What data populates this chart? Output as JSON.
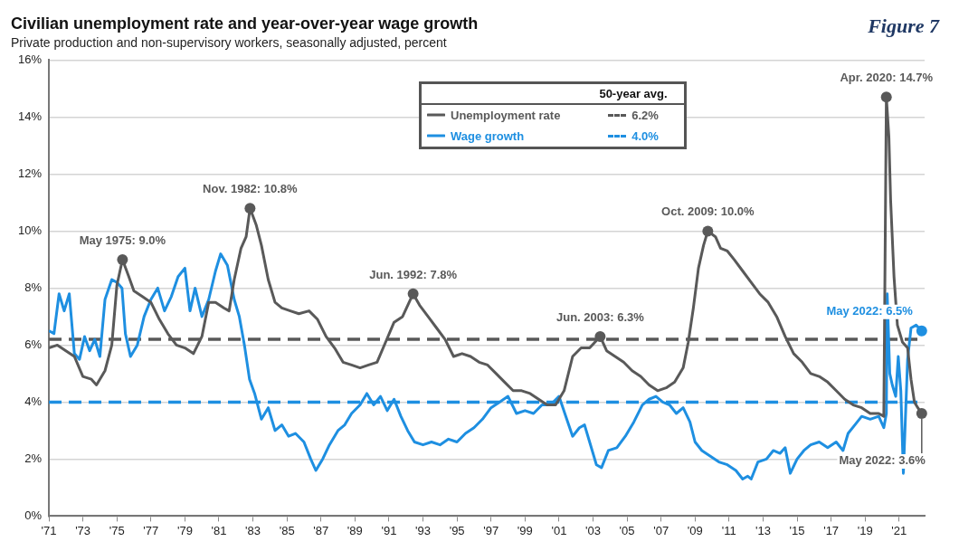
{
  "chart_data": {
    "type": "line",
    "title": "Civilian unemployment rate and year-over-year wage growth",
    "subtitle": "Private production and non-supervisory workers, seasonally adjusted, percent",
    "legend_title": "50-year avg.",
    "legend": "top",
    "grid": "y",
    "marker": "none",
    "line_style": "solid",
    "xlim": [
      1971,
      2022.5
    ],
    "xticks": [
      {
        "value": 1971,
        "label": "'71"
      },
      {
        "value": 1973,
        "label": "'73"
      },
      {
        "value": 1975,
        "label": "'75"
      },
      {
        "value": 1977,
        "label": "'77"
      },
      {
        "value": 1979,
        "label": "'79"
      },
      {
        "value": 1981,
        "label": "'81"
      },
      {
        "value": 1983,
        "label": "'83"
      },
      {
        "value": 1985,
        "label": "'85"
      },
      {
        "value": 1987,
        "label": "'87"
      },
      {
        "value": 1989,
        "label": "'89"
      },
      {
        "value": 1991,
        "label": "'91"
      },
      {
        "value": 1993,
        "label": "'93"
      },
      {
        "value": 1995,
        "label": "'95"
      },
      {
        "value": 1997,
        "label": "'97"
      },
      {
        "value": 1999,
        "label": "'99"
      },
      {
        "value": 2001,
        "label": "'01"
      },
      {
        "value": 2003,
        "label": "'03"
      },
      {
        "value": 2005,
        "label": "'05"
      },
      {
        "value": 2007,
        "label": "'07"
      },
      {
        "value": 2009,
        "label": "'09"
      },
      {
        "value": 2011,
        "label": "'11"
      },
      {
        "value": 2013,
        "label": "'13"
      },
      {
        "value": 2015,
        "label": "'15"
      },
      {
        "value": 2017,
        "label": "'17"
      },
      {
        "value": 2019,
        "label": "'19"
      },
      {
        "value": 2021,
        "label": "'21"
      }
    ],
    "ylim": [
      0,
      16
    ],
    "yticks": [
      {
        "value": 0,
        "label": "0%"
      },
      {
        "value": 2,
        "label": "2%"
      },
      {
        "value": 4,
        "label": "4%"
      },
      {
        "value": 6,
        "label": "6%"
      },
      {
        "value": 8,
        "label": "8%"
      },
      {
        "value": 10,
        "label": "10%"
      },
      {
        "value": 12,
        "label": "12%"
      },
      {
        "value": 14,
        "label": "14%"
      },
      {
        "value": 16,
        "label": "16%"
      }
    ],
    "series": [
      {
        "name": "Unemployment rate",
        "color": "#595959",
        "x": [
          1971.0,
          1971.5,
          1972.0,
          1972.5,
          1973.0,
          1973.5,
          1973.8,
          1974.3,
          1974.7,
          1975.0,
          1975.33,
          1975.7,
          1976.0,
          1976.5,
          1977.0,
          1977.5,
          1978.0,
          1978.5,
          1979.0,
          1979.5,
          1980.0,
          1980.4,
          1980.8,
          1981.3,
          1981.6,
          1981.9,
          1982.3,
          1982.6,
          1982.83,
          1983.2,
          1983.5,
          1983.9,
          1984.3,
          1984.7,
          1985.2,
          1985.7,
          1986.3,
          1986.8,
          1987.3,
          1987.8,
          1988.3,
          1988.8,
          1989.3,
          1989.8,
          1990.3,
          1990.8,
          1991.3,
          1991.8,
          1992.42,
          1992.8,
          1993.3,
          1993.8,
          1994.3,
          1994.8,
          1995.3,
          1995.8,
          1996.3,
          1996.8,
          1997.3,
          1997.8,
          1998.3,
          1998.8,
          1999.3,
          1999.8,
          2000.3,
          2000.8,
          2001.3,
          2001.8,
          2002.3,
          2002.8,
          2003.42,
          2003.8,
          2004.3,
          2004.8,
          2005.3,
          2005.8,
          2006.3,
          2006.8,
          2007.3,
          2007.8,
          2008.3,
          2008.6,
          2008.9,
          2009.2,
          2009.5,
          2009.75,
          2010.2,
          2010.5,
          2010.9,
          2011.3,
          2011.8,
          2012.3,
          2012.8,
          2013.3,
          2013.8,
          2014.3,
          2014.8,
          2015.3,
          2015.8,
          2016.3,
          2016.8,
          2017.3,
          2017.8,
          2018.3,
          2018.8,
          2019.3,
          2019.8,
          2020.1,
          2020.25,
          2020.4,
          2020.5,
          2020.7,
          2020.9,
          2021.2,
          2021.5,
          2021.7,
          2021.9,
          2022.1,
          2022.33
        ],
        "values": [
          5.9,
          6.0,
          5.8,
          5.6,
          4.9,
          4.8,
          4.6,
          5.1,
          6.0,
          8.1,
          9.0,
          8.4,
          7.9,
          7.7,
          7.5,
          6.9,
          6.4,
          6.0,
          5.9,
          5.7,
          6.3,
          7.5,
          7.5,
          7.3,
          7.2,
          8.3,
          9.4,
          9.8,
          10.8,
          10.2,
          9.5,
          8.3,
          7.5,
          7.3,
          7.2,
          7.1,
          7.2,
          6.9,
          6.3,
          5.9,
          5.4,
          5.3,
          5.2,
          5.3,
          5.4,
          6.1,
          6.8,
          7.0,
          7.8,
          7.4,
          7.0,
          6.6,
          6.2,
          5.6,
          5.7,
          5.6,
          5.4,
          5.3,
          5.0,
          4.7,
          4.4,
          4.4,
          4.3,
          4.1,
          3.9,
          3.9,
          4.4,
          5.6,
          5.9,
          5.9,
          6.3,
          5.8,
          5.6,
          5.4,
          5.1,
          4.9,
          4.6,
          4.4,
          4.5,
          4.7,
          5.2,
          6.1,
          7.3,
          8.7,
          9.5,
          10.0,
          9.8,
          9.4,
          9.3,
          9.0,
          8.6,
          8.2,
          7.8,
          7.5,
          7.0,
          6.3,
          5.7,
          5.4,
          5.0,
          4.9,
          4.7,
          4.4,
          4.1,
          3.9,
          3.8,
          3.6,
          3.6,
          3.5,
          14.7,
          13.3,
          11.1,
          8.4,
          6.7,
          6.1,
          5.9,
          4.8,
          4.0,
          3.8,
          3.6
        ]
      },
      {
        "name": "Wage growth",
        "color": "#1e8fe1",
        "x": [
          1971.0,
          1971.3,
          1971.6,
          1971.9,
          1972.2,
          1972.5,
          1972.8,
          1973.1,
          1973.4,
          1973.7,
          1974.0,
          1974.3,
          1974.7,
          1975.0,
          1975.3,
          1975.5,
          1975.8,
          1976.2,
          1976.6,
          1977.0,
          1977.4,
          1977.8,
          1978.2,
          1978.6,
          1979.0,
          1979.3,
          1979.6,
          1980.0,
          1980.4,
          1980.8,
          1981.1,
          1981.5,
          1981.9,
          1982.2,
          1982.5,
          1982.8,
          1983.1,
          1983.5,
          1983.9,
          1984.3,
          1984.7,
          1985.1,
          1985.5,
          1986.0,
          1986.4,
          1986.7,
          1987.1,
          1987.5,
          1988.0,
          1988.4,
          1988.8,
          1989.3,
          1989.7,
          1990.1,
          1990.5,
          1990.9,
          1991.3,
          1991.7,
          1992.1,
          1992.5,
          1993.0,
          1993.5,
          1994.0,
          1994.5,
          1995.0,
          1995.5,
          1996.0,
          1996.5,
          1997.0,
          1997.5,
          1998.0,
          1998.5,
          1999.0,
          1999.5,
          2000.0,
          2000.5,
          2001.0,
          2001.4,
          2001.8,
          2002.2,
          2002.5,
          2002.8,
          2003.2,
          2003.5,
          2003.9,
          2004.4,
          2004.9,
          2005.4,
          2005.9,
          2006.3,
          2006.7,
          2007.1,
          2007.5,
          2007.9,
          2008.3,
          2008.7,
          2009.0,
          2009.4,
          2009.9,
          2010.4,
          2010.9,
          2011.4,
          2011.8,
          2012.1,
          2012.3,
          2012.7,
          2013.2,
          2013.6,
          2014.0,
          2014.3,
          2014.6,
          2015.0,
          2015.4,
          2015.8,
          2016.3,
          2016.8,
          2017.3,
          2017.7,
          2018.0,
          2018.4,
          2018.8,
          2019.3,
          2019.8,
          2020.1,
          2020.25,
          2020.3,
          2020.45,
          2020.6,
          2020.8,
          2020.95,
          2021.1,
          2021.25,
          2021.5,
          2021.7,
          2022.0,
          2022.33
        ],
        "values": [
          6.5,
          6.4,
          7.8,
          7.2,
          7.8,
          5.7,
          5.5,
          6.3,
          5.8,
          6.2,
          5.6,
          7.6,
          8.3,
          8.2,
          8.0,
          6.4,
          5.6,
          6.0,
          7.0,
          7.6,
          8.0,
          7.2,
          7.7,
          8.4,
          8.7,
          7.2,
          8.0,
          7.0,
          7.6,
          8.6,
          9.2,
          8.8,
          7.6,
          7.0,
          6.0,
          4.8,
          4.3,
          3.4,
          3.8,
          3.0,
          3.2,
          2.8,
          2.9,
          2.6,
          2.0,
          1.6,
          2.0,
          2.5,
          3.0,
          3.2,
          3.6,
          3.9,
          4.3,
          3.9,
          4.2,
          3.7,
          4.1,
          3.5,
          3.0,
          2.6,
          2.5,
          2.6,
          2.5,
          2.7,
          2.6,
          2.9,
          3.1,
          3.4,
          3.8,
          4.0,
          4.2,
          3.6,
          3.7,
          3.6,
          3.9,
          3.9,
          4.2,
          3.5,
          2.8,
          3.1,
          3.2,
          2.6,
          1.8,
          1.7,
          2.3,
          2.4,
          2.8,
          3.3,
          3.9,
          4.1,
          4.2,
          4.0,
          3.9,
          3.6,
          3.8,
          3.3,
          2.6,
          2.3,
          2.1,
          1.9,
          1.8,
          1.6,
          1.3,
          1.4,
          1.3,
          1.9,
          2.0,
          2.3,
          2.2,
          2.4,
          1.5,
          2.0,
          2.3,
          2.5,
          2.6,
          2.4,
          2.6,
          2.3,
          2.9,
          3.2,
          3.5,
          3.4,
          3.5,
          3.1,
          3.6,
          7.8,
          5.0,
          4.6,
          4.2,
          5.6,
          4.4,
          1.5,
          5.5,
          6.6,
          6.7,
          6.5
        ]
      }
    ],
    "ref_lines": [
      {
        "axis": "y",
        "value": 6.2,
        "label": "6.2%",
        "color": "#595959",
        "line_style": "dashed"
      },
      {
        "axis": "y",
        "value": 4.0,
        "label": "4.0%",
        "color": "#1e8fe1",
        "line_style": "dashed"
      }
    ],
    "annotations": [
      "Figure 7",
      {
        "text": "May 1975: 9.0%",
        "x": 1975.33,
        "y": 9.0
      },
      {
        "text": "Nov. 1982: 10.8%",
        "x": 1982.83,
        "y": 10.8
      },
      {
        "text": "Jun. 1992: 7.8%",
        "x": 1992.42,
        "y": 7.8
      },
      {
        "text": "Jun. 2003: 6.3%",
        "x": 2003.42,
        "y": 6.3
      },
      {
        "text": "Oct. 2009: 10.0%",
        "x": 2009.75,
        "y": 10.0
      },
      {
        "text": "Apr. 2020: 14.7%",
        "x": 2020.25,
        "y": 14.7
      },
      {
        "text": "May 2022: 6.5%",
        "x": 2022.33,
        "y": 6.5
      },
      {
        "text": "May 2022: 3.6%",
        "x": 2022.33,
        "y": 3.6
      }
    ]
  }
}
